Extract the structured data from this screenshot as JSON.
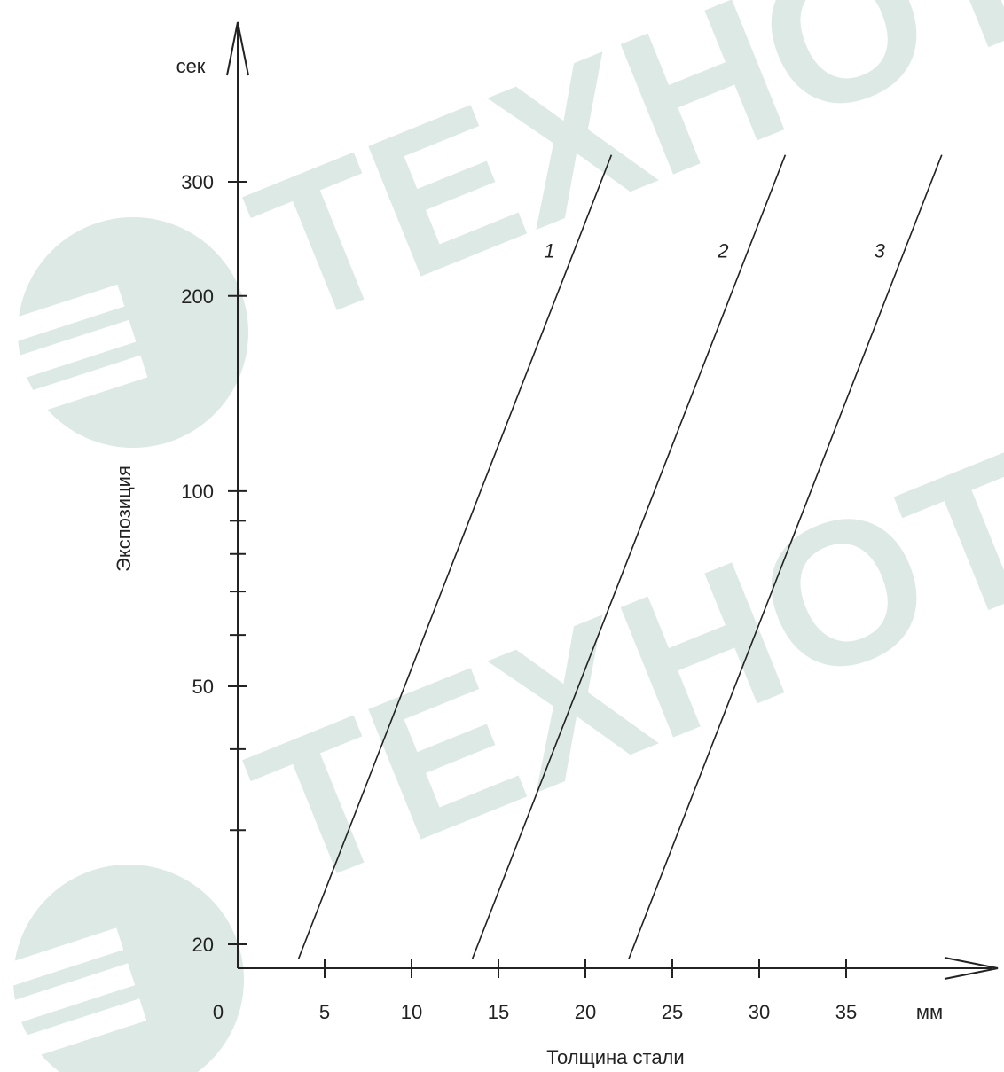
{
  "watermark": {
    "text": "TEXHOTE",
    "color": "#dde9e4",
    "icon": "techno-logo-icon"
  },
  "chart_data": {
    "type": "line",
    "xlabel": "Толщина стали",
    "ylabel": "Экспозиция",
    "x_unit": "мм",
    "y_unit": "сек",
    "x_ticks": [
      5,
      10,
      15,
      20,
      25,
      30,
      35
    ],
    "x_tick_labels": [
      "5",
      "10",
      "15",
      "20",
      "25",
      "30",
      "35"
    ],
    "origin_label": "0",
    "y_labeled_ticks": [
      20,
      50,
      100,
      200,
      300
    ],
    "y_tick_labels": [
      "20",
      "50",
      "100",
      "200",
      "300"
    ],
    "y_minor_ticks": [
      30,
      40,
      60,
      70,
      80,
      90
    ],
    "y_scale": "log",
    "xlim": [
      0,
      43
    ],
    "ylim": [
      18,
      500
    ],
    "grid": false,
    "series": [
      {
        "name": "1",
        "points": [
          [
            3.5,
            19
          ],
          [
            21.5,
            330
          ]
        ]
      },
      {
        "name": "2",
        "points": [
          [
            13.5,
            19
          ],
          [
            31.5,
            330
          ]
        ]
      },
      {
        "name": "3",
        "points": [
          [
            22.5,
            19
          ],
          [
            40.5,
            330
          ]
        ]
      }
    ],
    "line_color": "#222222"
  }
}
